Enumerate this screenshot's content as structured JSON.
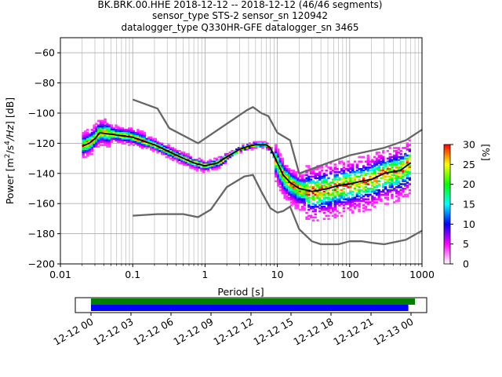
{
  "title": {
    "line1": "BK.BRK.00.HHE   2018-12-12 -- 2018-12-12  (46/46 segments)",
    "line2": "sensor_type STS-2 sensor_sn 120942",
    "line3": "datalogger_type Q330HR-GFE datalogger_sn 3465"
  },
  "colors": {
    "model_curves": "#666666",
    "mean_curve": "#000000",
    "grid": "#b0b0b0",
    "coverage_top": "#008000",
    "coverage_bottom": "#0000ff",
    "colormap": [
      "#ffffff",
      "#ff00ff",
      "#0000ff",
      "#00ffff",
      "#00ff00",
      "#ffff00",
      "#ff0000"
    ]
  },
  "chart_data": [
    {
      "type": "heatmap",
      "xlabel": "Period [s]",
      "ylabel": "Power [m^2/s^4/Hz] [dB]",
      "xscale": "log",
      "xlim": [
        0.01,
        1000
      ],
      "ylim": [
        -200,
        -50
      ],
      "xticks": [
        0.01,
        0.1,
        1,
        10,
        100,
        1000
      ],
      "xtick_labels": [
        "0.01",
        "0.1",
        "1",
        "10",
        "100",
        "1000"
      ],
      "yticks": [
        -200,
        -180,
        -160,
        -140,
        -120,
        -100,
        -80,
        -60
      ],
      "grid": true,
      "colorbar": {
        "label": "[%]",
        "range": [
          0,
          30
        ],
        "ticks": [
          0,
          5,
          10,
          15,
          20,
          25,
          30
        ]
      },
      "series": [
        {
          "name": "",
          "style": "mean",
          "x": [
            0.02,
            0.025,
            0.03,
            0.035,
            0.05,
            0.07,
            0.1,
            0.15,
            0.2,
            0.3,
            0.5,
            0.7,
            1,
            1.5,
            2,
            3,
            4,
            5,
            6,
            7,
            8,
            10,
            12,
            15,
            20,
            25,
            30,
            40,
            50,
            70,
            100,
            150,
            200,
            300,
            500,
            700
          ],
          "y": [
            -122,
            -120,
            -117,
            -113,
            -114,
            -115,
            -116,
            -119,
            -121,
            -125,
            -130,
            -133,
            -135,
            -133,
            -129,
            -124,
            -122,
            -121,
            -121,
            -121,
            -123,
            -133,
            -141,
            -146,
            -150,
            -151,
            -152,
            -151,
            -150,
            -148,
            -147,
            -145,
            -144,
            -140,
            -138,
            -133
          ]
        },
        {
          "name": "",
          "style": "upper_model",
          "x": [
            0.1,
            0.22,
            0.32,
            0.8,
            3.8,
            4.6,
            6,
            7.5,
            10,
            15,
            20,
            30,
            50,
            100,
            300,
            600,
            1000
          ],
          "y": [
            -91,
            -97,
            -110,
            -120,
            -98,
            -96,
            -100,
            -102,
            -113,
            -118,
            -140,
            -137,
            -133,
            -128,
            -123,
            -118,
            -111
          ]
        },
        {
          "name": "",
          "style": "lower_model",
          "x": [
            0.1,
            0.22,
            0.5,
            0.8,
            1.2,
            2,
            3.5,
            4.6,
            6,
            8,
            10,
            12,
            15,
            20,
            30,
            40,
            70,
            100,
            150,
            200,
            300,
            600,
            1000
          ],
          "y": [
            -168,
            -167,
            -167,
            -169,
            -164,
            -149,
            -142,
            -141,
            -152,
            -163,
            -166,
            -165,
            -162,
            -177,
            -185,
            -187,
            -187,
            -185,
            -185,
            -186,
            -187,
            -184,
            -178
          ]
        }
      ]
    },
    {
      "type": "bar",
      "xlim": [
        "12-12 00",
        "12-13 00"
      ],
      "xtick_labels": [
        "12-12 00",
        "12-12 03",
        "12-12 06",
        "12-12 09",
        "12-12 12",
        "12-12 15",
        "12-12 18",
        "12-12 21",
        "12-13 00"
      ],
      "series": [
        {
          "name": "",
          "start_hour": 0,
          "end_hour": 24.3,
          "color": "#008000"
        },
        {
          "name": "",
          "start_hour": 0,
          "end_hour": 23.8,
          "color": "#0000ff"
        }
      ]
    }
  ]
}
